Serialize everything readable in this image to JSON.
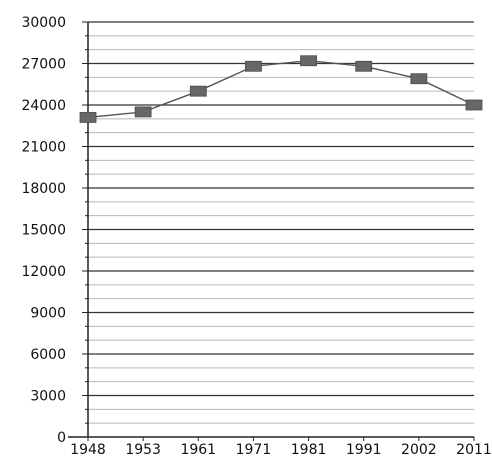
{
  "chart_data": {
    "type": "line",
    "title": "",
    "xlabel": "",
    "ylabel": "",
    "x": [
      "1948",
      "1953",
      "1961",
      "1971",
      "1981",
      "1991",
      "2002",
      "2011"
    ],
    "series": [
      {
        "values": [
          23100,
          23500,
          25000,
          26800,
          27200,
          26800,
          25900,
          24000
        ]
      }
    ],
    "ylim": [
      0,
      30000
    ],
    "yticks": [
      "0",
      "3000",
      "6000",
      "9000",
      "12000",
      "15000",
      "18000",
      "21000",
      "24000",
      "27000",
      "30000"
    ],
    "grid": true,
    "minor_grid": true,
    "legend": "none",
    "colors": {
      "line": "#555555",
      "marker": "#666666",
      "major_grid": "#333333",
      "minor_grid": "#b8b8b8",
      "axis": "#222222"
    }
  }
}
